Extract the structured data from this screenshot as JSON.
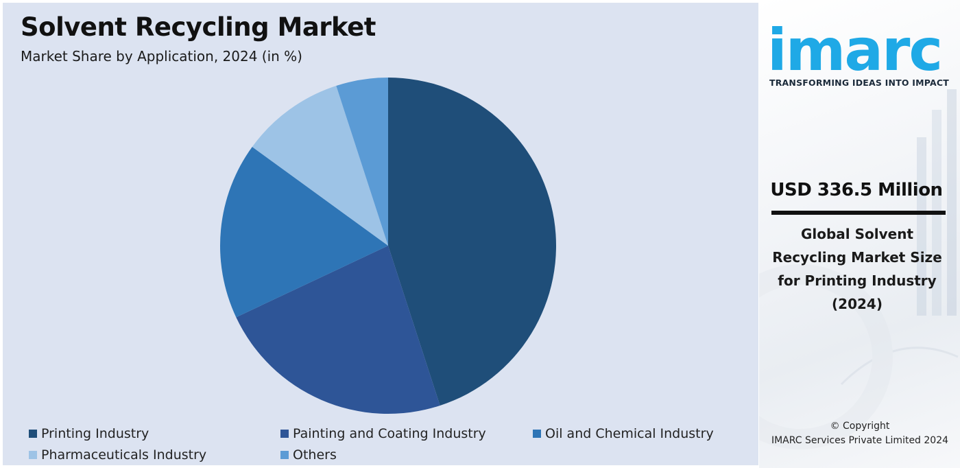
{
  "header": {
    "title": "Solvent Recycling Market",
    "subtitle": "Market Share by Application, 2024 (in %)"
  },
  "chart_data": {
    "type": "pie",
    "title": "Solvent Recycling Market",
    "subtitle": "Market Share by Application, 2024 (in %)",
    "categories": [
      "Printing Industry",
      "Painting and Coating Industry",
      "Oil and Chemical Industry",
      "Pharmaceuticals Industry",
      "Others"
    ],
    "values": [
      45,
      23,
      17,
      10,
      5
    ],
    "colors": [
      "#1f4e79",
      "#2e5597",
      "#2e75b6",
      "#9dc3e6",
      "#5b9bd5"
    ],
    "legend_position": "bottom"
  },
  "sidebar": {
    "logo_text": "imarc",
    "tagline": "TRANSFORMING IDEAS INTO IMPACT",
    "headline": "USD 336.5 Million",
    "description_lines": [
      "Global Solvent",
      "Recycling Market Size",
      "for Printing Industry",
      "(2024)"
    ],
    "copyright_symbol": "© Copyright",
    "copyright_text": "IMARC Services Private Limited 2024",
    "brand_color": "#1fa9e6"
  }
}
